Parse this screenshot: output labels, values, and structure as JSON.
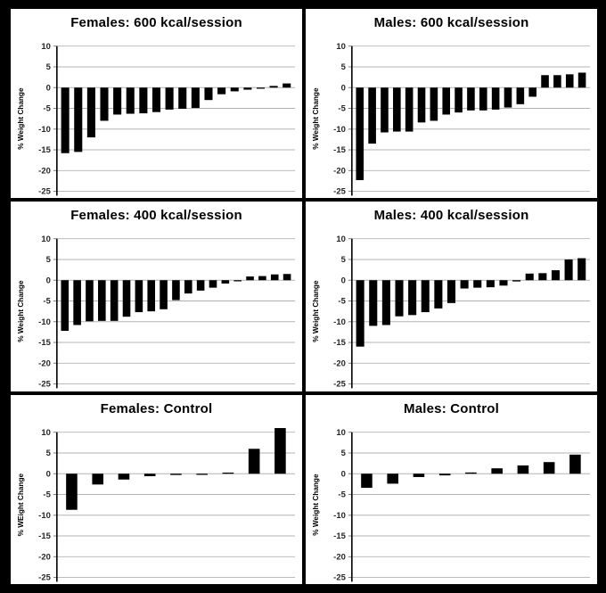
{
  "figure": {
    "background": "#000000",
    "panel_bg": "#ffffff",
    "bar_color": "#000000",
    "grid_color": "#b3b3b3",
    "axis_color": "#000000",
    "tick_text_color": "#262626",
    "title_color": "#000000"
  },
  "chart_data": [
    {
      "type": "bar",
      "title": "Females: 600 kcal/session",
      "ylabel": "% Weight Change",
      "xlabel": "",
      "ylim": [
        -25,
        10
      ],
      "yticks": [
        10,
        5,
        0,
        -5,
        -10,
        -15,
        -20,
        -25
      ],
      "grid": true,
      "values": [
        -15.8,
        -15.5,
        -12.0,
        -8.0,
        -6.5,
        -6.3,
        -6.2,
        -5.9,
        -5.3,
        -5.1,
        -4.9,
        -3.0,
        -1.6,
        -0.9,
        -0.5,
        -0.2,
        0.4,
        1.0
      ]
    },
    {
      "type": "bar",
      "title": "Males: 600 kcal/session",
      "ylabel": "% Weight Change",
      "xlabel": "",
      "ylim": [
        -25,
        10
      ],
      "yticks": [
        10,
        5,
        0,
        -5,
        -10,
        -15,
        -20,
        -25
      ],
      "grid": true,
      "values": [
        -22.3,
        -13.5,
        -10.8,
        -10.6,
        -10.6,
        -8.4,
        -8.0,
        -6.5,
        -6.0,
        -5.5,
        -5.5,
        -5.3,
        -4.8,
        -4.0,
        -2.2,
        3.0,
        3.0,
        3.2,
        3.6
      ]
    },
    {
      "type": "bar",
      "title": "Females: 400 kcal/session",
      "ylabel": "% Weight Change",
      "xlabel": "",
      "ylim": [
        -25,
        10
      ],
      "yticks": [
        10,
        5,
        0,
        -5,
        -10,
        -15,
        -20,
        -25
      ],
      "grid": true,
      "values": [
        -12.2,
        -10.8,
        -9.9,
        -9.8,
        -9.8,
        -8.8,
        -7.7,
        -7.5,
        -7.0,
        -4.8,
        -3.2,
        -2.5,
        -1.8,
        -0.8,
        -0.2,
        0.9,
        1.0,
        1.4,
        1.5
      ]
    },
    {
      "type": "bar",
      "title": "Males: 400 kcal/session",
      "ylabel": "% Weight Change",
      "xlabel": "",
      "ylim": [
        -25,
        10
      ],
      "yticks": [
        10,
        5,
        0,
        -5,
        -10,
        -15,
        -20,
        -25
      ],
      "grid": true,
      "values": [
        -16.0,
        -11.0,
        -10.8,
        -8.7,
        -8.4,
        -7.7,
        -6.8,
        -5.5,
        -2.0,
        -1.8,
        -1.7,
        -1.3,
        -0.3,
        1.6,
        1.7,
        2.4,
        5.0,
        5.3
      ]
    },
    {
      "type": "bar",
      "title": "Females: Control",
      "ylabel": "% WEight Change",
      "xlabel": "",
      "ylim": [
        -25,
        10
      ],
      "yticks": [
        10,
        5,
        0,
        -5,
        -10,
        -15,
        -20,
        -25
      ],
      "grid": true,
      "values": [
        -8.7,
        -2.6,
        -1.4,
        -0.6,
        -0.3,
        -0.2,
        0.2,
        6.0,
        11.0
      ]
    },
    {
      "type": "bar",
      "title": "Males: Control",
      "ylabel": "% Weight Change",
      "xlabel": "",
      "ylim": [
        -25,
        10
      ],
      "yticks": [
        10,
        5,
        0,
        -5,
        -10,
        -15,
        -20,
        -25
      ],
      "grid": true,
      "values": [
        -3.4,
        -2.4,
        -0.8,
        -0.4,
        0.3,
        1.3,
        2.0,
        2.8,
        4.6
      ]
    }
  ]
}
